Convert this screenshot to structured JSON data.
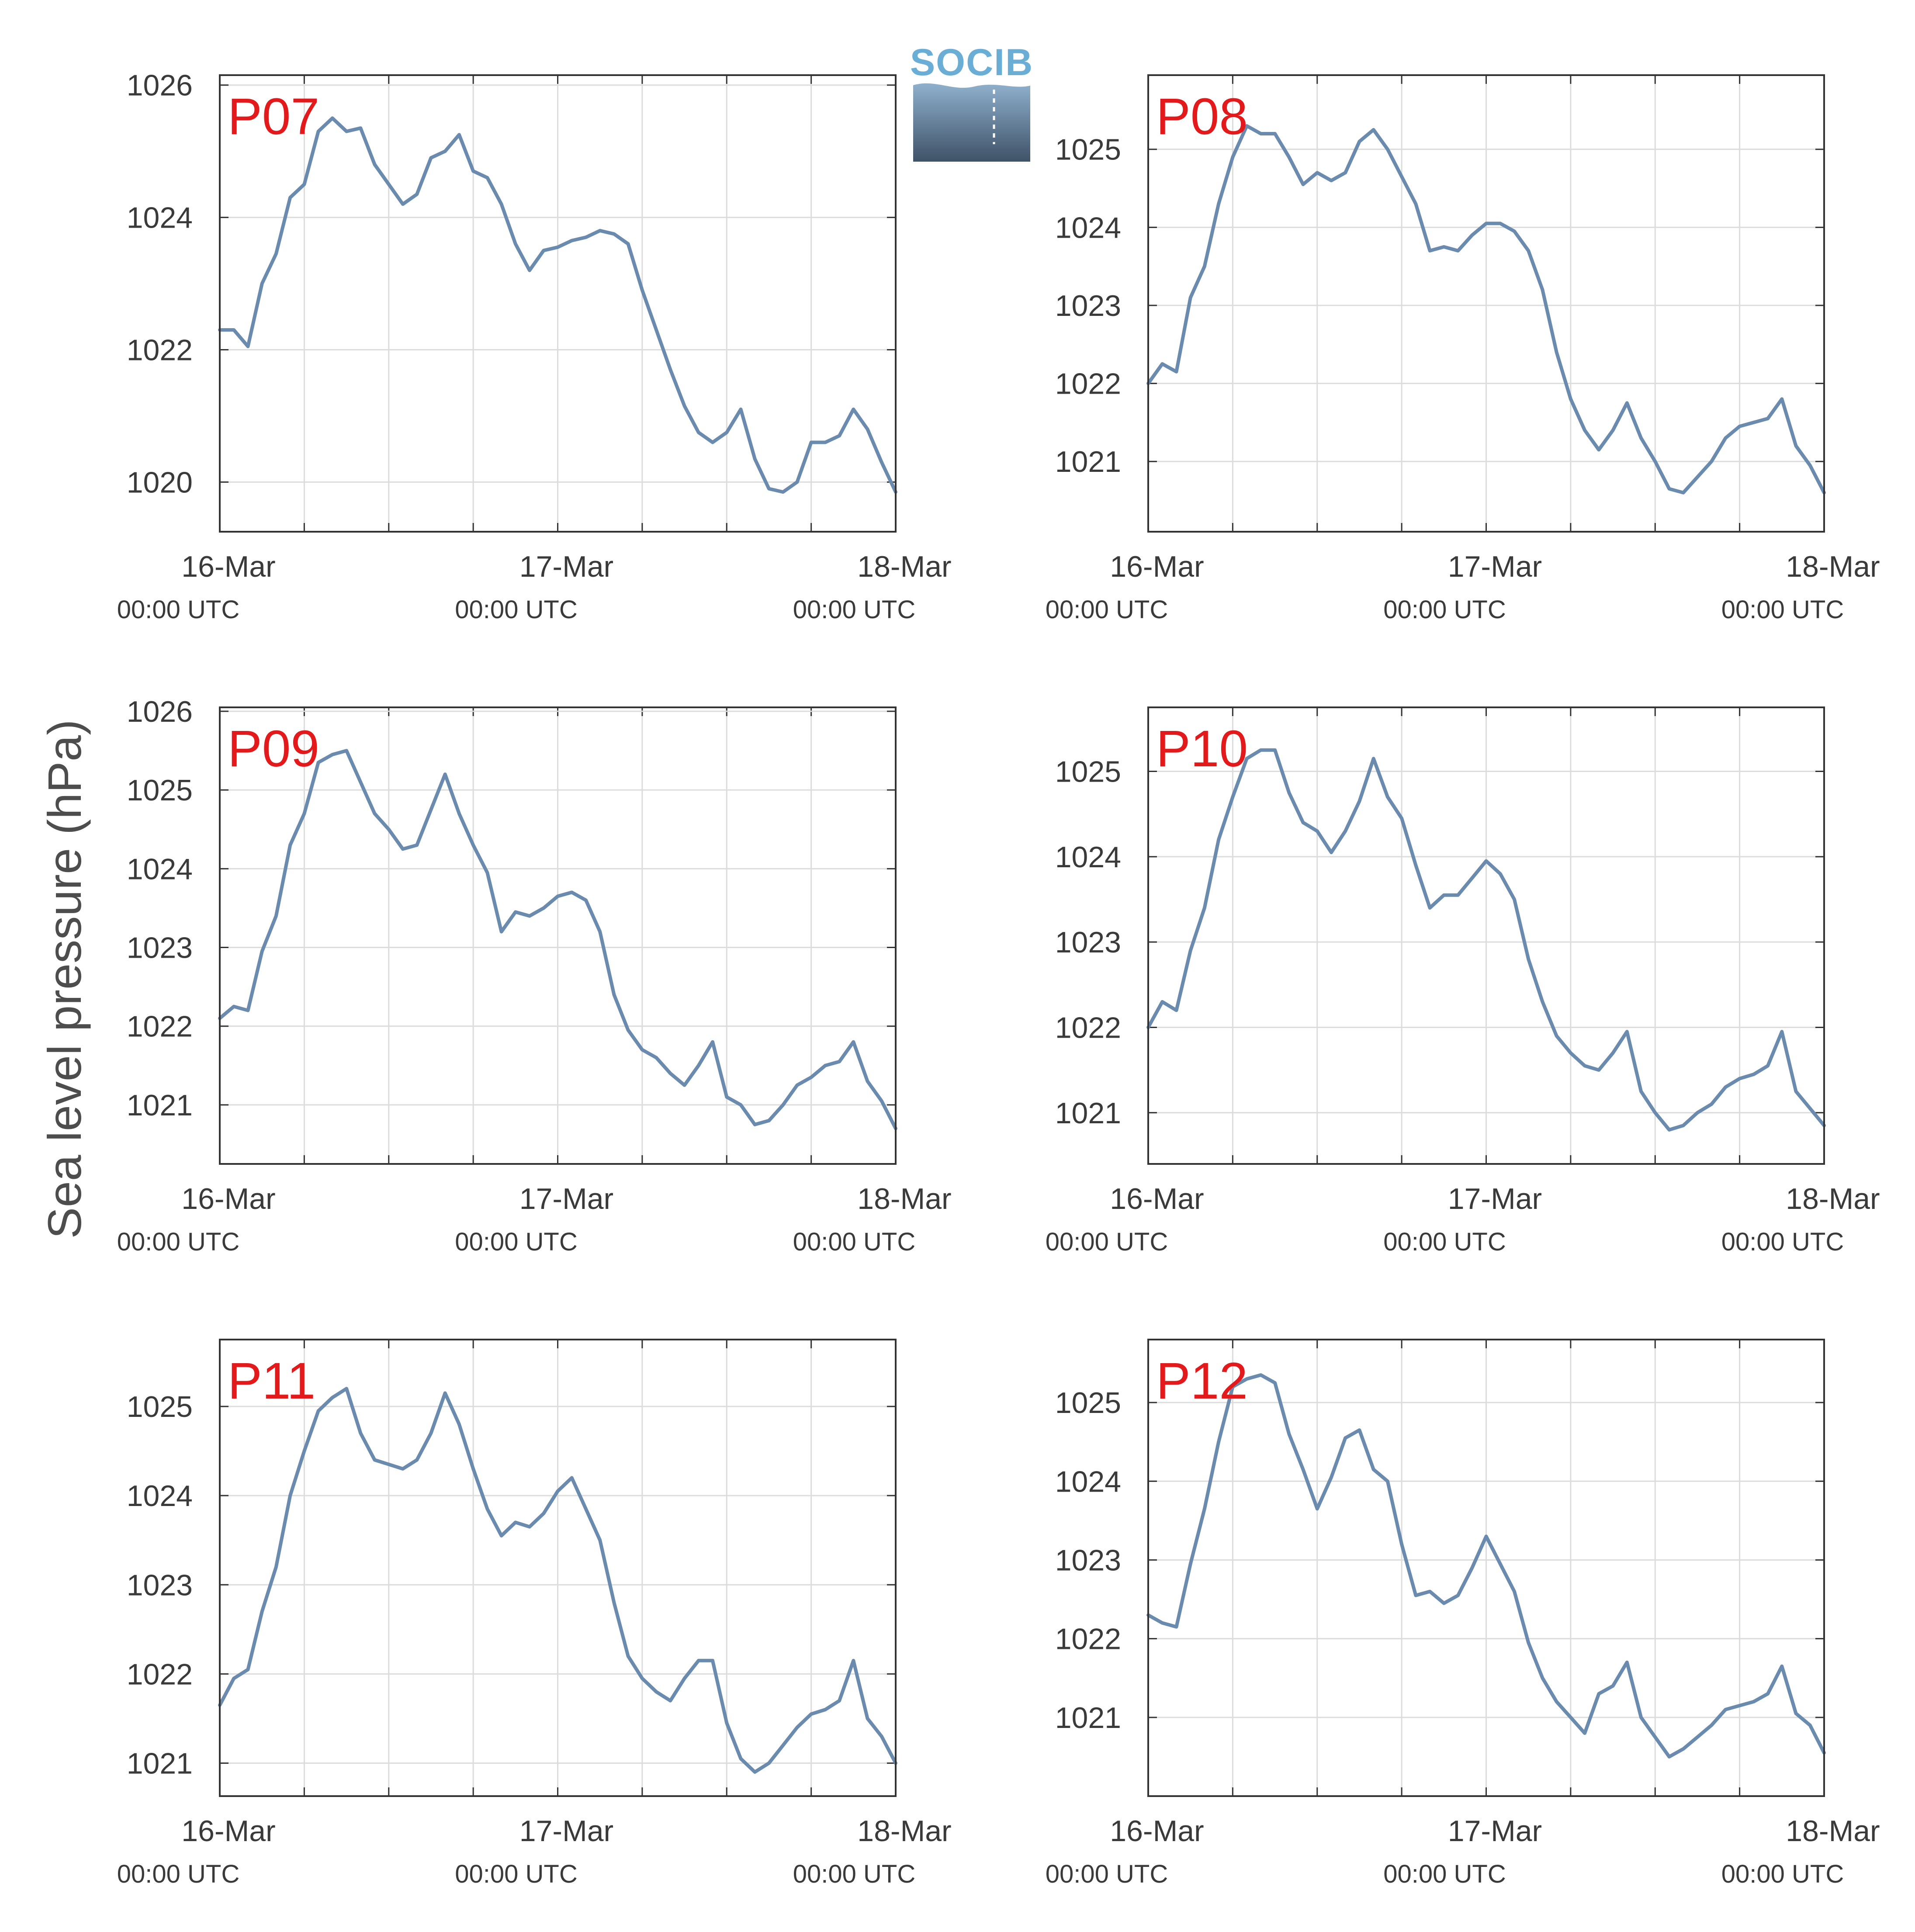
{
  "figure": {
    "ylabel": "Sea level pressure (hPa)",
    "logo_text": "SOCIB",
    "line_color": "#6a8bad",
    "accent_color": "#e31a1c"
  },
  "chart_data": [
    {
      "type": "line",
      "panel": "P07",
      "x_ticks": [
        {
          "date": "16-Mar",
          "time": "00:00 UTC"
        },
        {
          "date": "17-Mar",
          "time": "00:00 UTC"
        },
        {
          "date": "18-Mar",
          "time": "00:00 UTC"
        }
      ],
      "xlim": [
        0,
        48
      ],
      "ylim": [
        1019.25,
        1026.15
      ],
      "yticks": [
        1020,
        1022,
        1024,
        1026
      ],
      "grid": true,
      "x": [
        0,
        1,
        2,
        3,
        4,
        5,
        6,
        7,
        8,
        9,
        10,
        11,
        12,
        13,
        14,
        15,
        16,
        17,
        18,
        19,
        20,
        21,
        22,
        23,
        24,
        25,
        26,
        27,
        28,
        29,
        30,
        31,
        32,
        33,
        34,
        35,
        36,
        37,
        38,
        39,
        40,
        41,
        42,
        43,
        44,
        45,
        46,
        47,
        48
      ],
      "y": [
        1022.3,
        1022.3,
        1022.05,
        1023.0,
        1023.45,
        1024.3,
        1024.5,
        1025.3,
        1025.5,
        1025.3,
        1025.35,
        1024.8,
        1024.5,
        1024.2,
        1024.35,
        1024.9,
        1025.0,
        1025.25,
        1024.7,
        1024.6,
        1024.2,
        1023.6,
        1023.2,
        1023.5,
        1023.55,
        1023.65,
        1023.7,
        1023.8,
        1023.75,
        1023.6,
        1022.9,
        1022.3,
        1021.7,
        1021.15,
        1020.75,
        1020.6,
        1020.75,
        1021.1,
        1020.35,
        1019.9,
        1019.85,
        1020.0,
        1020.6,
        1020.6,
        1020.7,
        1021.1,
        1020.8,
        1020.3,
        1019.85
      ]
    },
    {
      "type": "line",
      "panel": "P08",
      "x_ticks": [
        {
          "date": "16-Mar",
          "time": "00:00 UTC"
        },
        {
          "date": "17-Mar",
          "time": "00:00 UTC"
        },
        {
          "date": "18-Mar",
          "time": "00:00 UTC"
        }
      ],
      "xlim": [
        0,
        48
      ],
      "ylim": [
        1020.1,
        1025.95
      ],
      "yticks": [
        1021,
        1022,
        1023,
        1024,
        1025
      ],
      "grid": true,
      "x": [
        0,
        1,
        2,
        3,
        4,
        5,
        6,
        7,
        8,
        9,
        10,
        11,
        12,
        13,
        14,
        15,
        16,
        17,
        18,
        19,
        20,
        21,
        22,
        23,
        24,
        25,
        26,
        27,
        28,
        29,
        30,
        31,
        32,
        33,
        34,
        35,
        36,
        37,
        38,
        39,
        40,
        41,
        42,
        43,
        44,
        45,
        46,
        47,
        48
      ],
      "y": [
        1022.0,
        1022.25,
        1022.15,
        1023.1,
        1023.5,
        1024.3,
        1024.9,
        1025.3,
        1025.2,
        1025.2,
        1024.9,
        1024.55,
        1024.7,
        1024.6,
        1024.7,
        1025.1,
        1025.25,
        1025.0,
        1024.65,
        1024.3,
        1023.7,
        1023.75,
        1023.7,
        1023.9,
        1024.05,
        1024.05,
        1023.95,
        1023.7,
        1023.2,
        1022.4,
        1021.8,
        1021.4,
        1021.15,
        1021.4,
        1021.75,
        1021.3,
        1021.0,
        1020.65,
        1020.6,
        1020.8,
        1021.0,
        1021.3,
        1021.45,
        1021.5,
        1021.55,
        1021.8,
        1021.2,
        1020.95,
        1020.6
      ]
    },
    {
      "type": "line",
      "panel": "P09",
      "x_ticks": [
        {
          "date": "16-Mar",
          "time": "00:00 UTC"
        },
        {
          "date": "17-Mar",
          "time": "00:00 UTC"
        },
        {
          "date": "18-Mar",
          "time": "00:00 UTC"
        }
      ],
      "xlim": [
        0,
        48
      ],
      "ylim": [
        1020.25,
        1026.05
      ],
      "yticks": [
        1021,
        1022,
        1023,
        1024,
        1025,
        1026
      ],
      "grid": true,
      "x": [
        0,
        1,
        2,
        3,
        4,
        5,
        6,
        7,
        8,
        9,
        10,
        11,
        12,
        13,
        14,
        15,
        16,
        17,
        18,
        19,
        20,
        21,
        22,
        23,
        24,
        25,
        26,
        27,
        28,
        29,
        30,
        31,
        32,
        33,
        34,
        35,
        36,
        37,
        38,
        39,
        40,
        41,
        42,
        43,
        44,
        45,
        46,
        47,
        48
      ],
      "y": [
        1022.1,
        1022.25,
        1022.2,
        1022.95,
        1023.4,
        1024.3,
        1024.7,
        1025.35,
        1025.45,
        1025.5,
        1025.1,
        1024.7,
        1024.5,
        1024.25,
        1024.3,
        1024.75,
        1025.2,
        1024.7,
        1024.3,
        1023.95,
        1023.2,
        1023.45,
        1023.4,
        1023.5,
        1023.65,
        1023.7,
        1023.6,
        1023.2,
        1022.4,
        1021.95,
        1021.7,
        1021.6,
        1021.4,
        1021.25,
        1021.5,
        1021.8,
        1021.1,
        1021.0,
        1020.75,
        1020.8,
        1021.0,
        1021.25,
        1021.35,
        1021.5,
        1021.55,
        1021.8,
        1021.3,
        1021.05,
        1020.7
      ]
    },
    {
      "type": "line",
      "panel": "P10",
      "x_ticks": [
        {
          "date": "16-Mar",
          "time": "00:00 UTC"
        },
        {
          "date": "17-Mar",
          "time": "00:00 UTC"
        },
        {
          "date": "18-Mar",
          "time": "00:00 UTC"
        }
      ],
      "xlim": [
        0,
        48
      ],
      "ylim": [
        1020.4,
        1025.75
      ],
      "yticks": [
        1021,
        1022,
        1023,
        1024,
        1025
      ],
      "grid": true,
      "x": [
        0,
        1,
        2,
        3,
        4,
        5,
        6,
        7,
        8,
        9,
        10,
        11,
        12,
        13,
        14,
        15,
        16,
        17,
        18,
        19,
        20,
        21,
        22,
        23,
        24,
        25,
        26,
        27,
        28,
        29,
        30,
        31,
        32,
        33,
        34,
        35,
        36,
        37,
        38,
        39,
        40,
        41,
        42,
        43,
        44,
        45,
        46,
        47,
        48
      ],
      "y": [
        1022.0,
        1022.3,
        1022.2,
        1022.9,
        1023.4,
        1024.2,
        1024.7,
        1025.15,
        1025.25,
        1025.25,
        1024.75,
        1024.4,
        1024.3,
        1024.05,
        1024.3,
        1024.65,
        1025.15,
        1024.7,
        1024.45,
        1023.9,
        1023.4,
        1023.55,
        1023.55,
        1023.75,
        1023.95,
        1023.8,
        1023.5,
        1022.8,
        1022.3,
        1021.9,
        1021.7,
        1021.55,
        1021.5,
        1021.7,
        1021.95,
        1021.25,
        1021.0,
        1020.8,
        1020.85,
        1021.0,
        1021.1,
        1021.3,
        1021.4,
        1021.45,
        1021.55,
        1021.95,
        1021.25,
        1021.05,
        1020.85
      ]
    },
    {
      "type": "line",
      "panel": "P11",
      "x_ticks": [
        {
          "date": "16-Mar",
          "time": "00:00 UTC"
        },
        {
          "date": "17-Mar",
          "time": "00:00 UTC"
        },
        {
          "date": "18-Mar",
          "time": "00:00 UTC"
        }
      ],
      "xlim": [
        0,
        48
      ],
      "ylim": [
        1020.63,
        1025.75
      ],
      "yticks": [
        1021,
        1022,
        1023,
        1024,
        1025
      ],
      "grid": true,
      "x": [
        0,
        1,
        2,
        3,
        4,
        5,
        6,
        7,
        8,
        9,
        10,
        11,
        12,
        13,
        14,
        15,
        16,
        17,
        18,
        19,
        20,
        21,
        22,
        23,
        24,
        25,
        26,
        27,
        28,
        29,
        30,
        31,
        32,
        33,
        34,
        35,
        36,
        37,
        38,
        39,
        40,
        41,
        42,
        43,
        44,
        45,
        46,
        47,
        48
      ],
      "y": [
        1021.65,
        1021.95,
        1022.05,
        1022.7,
        1023.2,
        1024.0,
        1024.5,
        1024.95,
        1025.1,
        1025.2,
        1024.7,
        1024.4,
        1024.35,
        1024.3,
        1024.4,
        1024.7,
        1025.15,
        1024.8,
        1024.3,
        1023.85,
        1023.55,
        1023.7,
        1023.65,
        1023.8,
        1024.05,
        1024.2,
        1023.85,
        1023.5,
        1022.8,
        1022.2,
        1021.95,
        1021.8,
        1021.7,
        1021.95,
        1022.15,
        1022.15,
        1021.45,
        1021.05,
        1020.9,
        1021.0,
        1021.2,
        1021.4,
        1021.55,
        1021.6,
        1021.7,
        1022.15,
        1021.5,
        1021.3,
        1021.0
      ]
    },
    {
      "type": "line",
      "panel": "P12",
      "x_ticks": [
        {
          "date": "16-Mar",
          "time": "00:00 UTC"
        },
        {
          "date": "17-Mar",
          "time": "00:00 UTC"
        },
        {
          "date": "18-Mar",
          "time": "00:00 UTC"
        }
      ],
      "xlim": [
        0,
        48
      ],
      "ylim": [
        1020.0,
        1025.8
      ],
      "yticks": [
        1021,
        1022,
        1023,
        1024,
        1025
      ],
      "grid": true,
      "x": [
        0,
        1,
        2,
        3,
        4,
        5,
        6,
        7,
        8,
        9,
        10,
        11,
        12,
        13,
        14,
        15,
        16,
        17,
        18,
        19,
        20,
        21,
        22,
        23,
        24,
        25,
        26,
        27,
        28,
        29,
        30,
        31,
        32,
        33,
        34,
        35,
        36,
        37,
        38,
        39,
        40,
        41,
        42,
        43,
        44,
        45,
        46,
        47,
        48
      ],
      "y": [
        1022.3,
        1022.2,
        1022.15,
        1022.95,
        1023.65,
        1024.5,
        1025.2,
        1025.3,
        1025.35,
        1025.25,
        1024.6,
        1024.15,
        1023.65,
        1024.05,
        1024.55,
        1024.65,
        1024.15,
        1024.0,
        1023.2,
        1022.55,
        1022.6,
        1022.45,
        1022.55,
        1022.9,
        1023.3,
        1022.95,
        1022.6,
        1021.95,
        1021.5,
        1021.2,
        1021.0,
        1020.8,
        1021.3,
        1021.4,
        1021.7,
        1021.0,
        1020.75,
        1020.5,
        1020.6,
        1020.75,
        1020.9,
        1021.1,
        1021.15,
        1021.2,
        1021.3,
        1021.65,
        1021.05,
        1020.9,
        1020.55
      ]
    }
  ]
}
